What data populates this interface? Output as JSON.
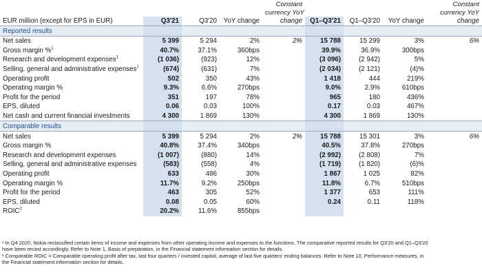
{
  "header": {
    "label": "EUR million (except for EPS in EUR)",
    "q321": "Q3'21",
    "q320": "Q3'20",
    "yoy": "YoY change",
    "ccy1": "Constant",
    "ccy2": "currency YoY",
    "ccy3": "change",
    "q1q321": "Q1–Q3'21",
    "q1q320": "Q1–Q3'20",
    "yoy2": "YoY change",
    "ccyb1": "Constant",
    "ccyb2": "currency YoY",
    "ccyb3": "change"
  },
  "reported": {
    "title": "Reported results",
    "rows": [
      {
        "label": "Net sales",
        "sup": "",
        "a": "5 399",
        "b": "5 294",
        "c": "2%",
        "d": "2%",
        "e": "15 788",
        "f": "15 299",
        "g": "3%",
        "h": "6%"
      },
      {
        "label": "Gross margin %",
        "sup": "1",
        "a": "40.7%",
        "b": "37.1%",
        "c": "360bps",
        "d": "",
        "e": "39.9%",
        "f": "36.9%",
        "g": "300bps",
        "h": ""
      },
      {
        "label": "Research and development expenses",
        "sup": "1",
        "a": "(1 036)",
        "b": "(923)",
        "c": "12%",
        "d": "",
        "e": "(3 096)",
        "f": "(2 942)",
        "g": "5%",
        "h": ""
      },
      {
        "label": "Selling, general and administrative expenses",
        "sup": "1",
        "a": "(674)",
        "b": "(631)",
        "c": "7%",
        "d": "",
        "e": "(2 034)",
        "f": "(2 121)",
        "g": "(4)%",
        "h": ""
      },
      {
        "label": "Operating profit",
        "sup": "",
        "a": "502",
        "b": "350",
        "c": "43%",
        "d": "",
        "e": "1 418",
        "f": "444",
        "g": "219%",
        "h": ""
      },
      {
        "label": "Operating margin %",
        "sup": "",
        "a": "9.3%",
        "b": "6.6%",
        "c": "270bps",
        "d": "",
        "e": "9.0%",
        "f": "2.9%",
        "g": "610bps",
        "h": ""
      },
      {
        "label": "Profit for the period",
        "sup": "",
        "a": "351",
        "b": "197",
        "c": "78%",
        "d": "",
        "e": "965",
        "f": "180",
        "g": "436%",
        "h": ""
      },
      {
        "label": "EPS, diluted",
        "sup": "",
        "a": "0.06",
        "b": "0.03",
        "c": "100%",
        "d": "",
        "e": "0.17",
        "f": "0.03",
        "g": "467%",
        "h": ""
      },
      {
        "label": "Net cash and current financial investments",
        "sup": "",
        "a": "4 300",
        "b": "1 869",
        "c": "130%",
        "d": "",
        "e": "4 300",
        "f": "1 869",
        "g": "130%",
        "h": ""
      }
    ]
  },
  "comparable": {
    "title": "Comparable results",
    "rows": [
      {
        "label": "Net sales",
        "sup": "",
        "a": "5 399",
        "b": "5 294",
        "c": "2%",
        "d": "2%",
        "e": "15 788",
        "f": "15 301",
        "g": "3%",
        "h": "6%"
      },
      {
        "label": "Gross margin %",
        "sup": "",
        "a": "40.8%",
        "b": "37.4%",
        "c": "340bps",
        "d": "",
        "e": "40.5%",
        "f": "37.8%",
        "g": "270bps",
        "h": ""
      },
      {
        "label": "Research and development expenses",
        "sup": "",
        "a": "(1 007)",
        "b": "(880)",
        "c": "14%",
        "d": "",
        "e": "(2 992)",
        "f": "(2 808)",
        "g": "7%",
        "h": ""
      },
      {
        "label": "Selling, general and administrative expenses",
        "sup": "",
        "a": "(583)",
        "b": "(558)",
        "c": "4%",
        "d": "",
        "e": "(1 719)",
        "f": "(1 820)",
        "g": "(6)%",
        "h": ""
      },
      {
        "label": "Operating profit",
        "sup": "",
        "a": "633",
        "b": "486",
        "c": "30%",
        "d": "",
        "e": "1 867",
        "f": "1 025",
        "g": "82%",
        "h": ""
      },
      {
        "label": "Operating margin %",
        "sup": "",
        "a": "11.7%",
        "b": "9.2%",
        "c": "250bps",
        "d": "",
        "e": "11.8%",
        "f": "6.7%",
        "g": "510bps",
        "h": ""
      },
      {
        "label": "Profit for the period",
        "sup": "",
        "a": "463",
        "b": "305",
        "c": "52%",
        "d": "",
        "e": "1 377",
        "f": "653",
        "g": "111%",
        "h": ""
      },
      {
        "label": "EPS, diluted",
        "sup": "",
        "a": "0.08",
        "b": "0.05",
        "c": "60%",
        "d": "",
        "e": "0.24",
        "f": "0.11",
        "g": "118%",
        "h": ""
      },
      {
        "label": "ROIC",
        "sup": "2",
        "a": "20.2%",
        "b": "11.6%",
        "c": "855bps",
        "d": "",
        "e": "",
        "f": "",
        "g": "",
        "h": ""
      }
    ]
  },
  "footnotes": [
    "¹ In Q4 2020, Nokia reclassified certain items of income and expenses from other operating income and expenses to the functions. The comparative reported results for Q3'20 and Q1–Q3'20",
    "have been recast accordingly. Refer to Note 1, Basis of preparation, in the Financial statement information section for details.",
    "² Comparable ROIC = Comparable operating profit after tax, last four quarters / invested capital, average of last five quarters' ending balances. Refer to Note 10, Performance measures, in",
    "the Financial statement information section for details."
  ],
  "colors": {
    "accent": "#1f4e8c",
    "shade": "#d5e1ee"
  }
}
